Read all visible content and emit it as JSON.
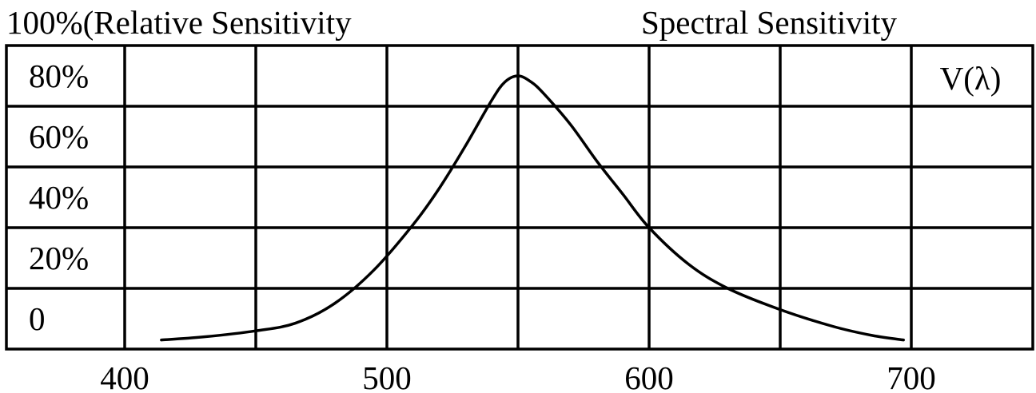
{
  "chart_data": {
    "type": "line",
    "title": "Spectral Sensitivity",
    "ylabel": "100%(Relative Sensitivity",
    "series_label": "V(λ)",
    "xlim": [
      350,
      750
    ],
    "ylim": [
      0,
      100
    ],
    "x_ticks": [
      {
        "value": 400,
        "label": "400"
      },
      {
        "value": 500,
        "label": "500"
      },
      {
        "value": 600,
        "label": "600"
      },
      {
        "value": 700,
        "label": "700"
      }
    ],
    "x_gridlines": [
      400,
      450,
      500,
      550,
      600,
      650,
      700
    ],
    "y_ticks": [
      {
        "value": 0,
        "label": "0"
      },
      {
        "value": 20,
        "label": "20%"
      },
      {
        "value": 40,
        "label": "40%"
      },
      {
        "value": 60,
        "label": "60%"
      },
      {
        "value": 80,
        "label": "80%"
      }
    ],
    "y_gridlines": [
      20,
      40,
      60,
      80
    ],
    "grid": true,
    "series": [
      {
        "x": [
          414,
          430,
          450,
          465,
          480,
          495,
          510,
          520,
          530,
          540,
          545,
          550,
          555,
          560,
          570,
          580,
          590,
          600,
          615,
          630,
          650,
          670,
          685,
          697
        ],
        "y": [
          3,
          4,
          6,
          8.5,
          15,
          26,
          41,
          53,
          67,
          82,
          88,
          90,
          88,
          84,
          74,
          62,
          51,
          40,
          28,
          20,
          13,
          7.5,
          4.5,
          3
        ]
      }
    ]
  }
}
